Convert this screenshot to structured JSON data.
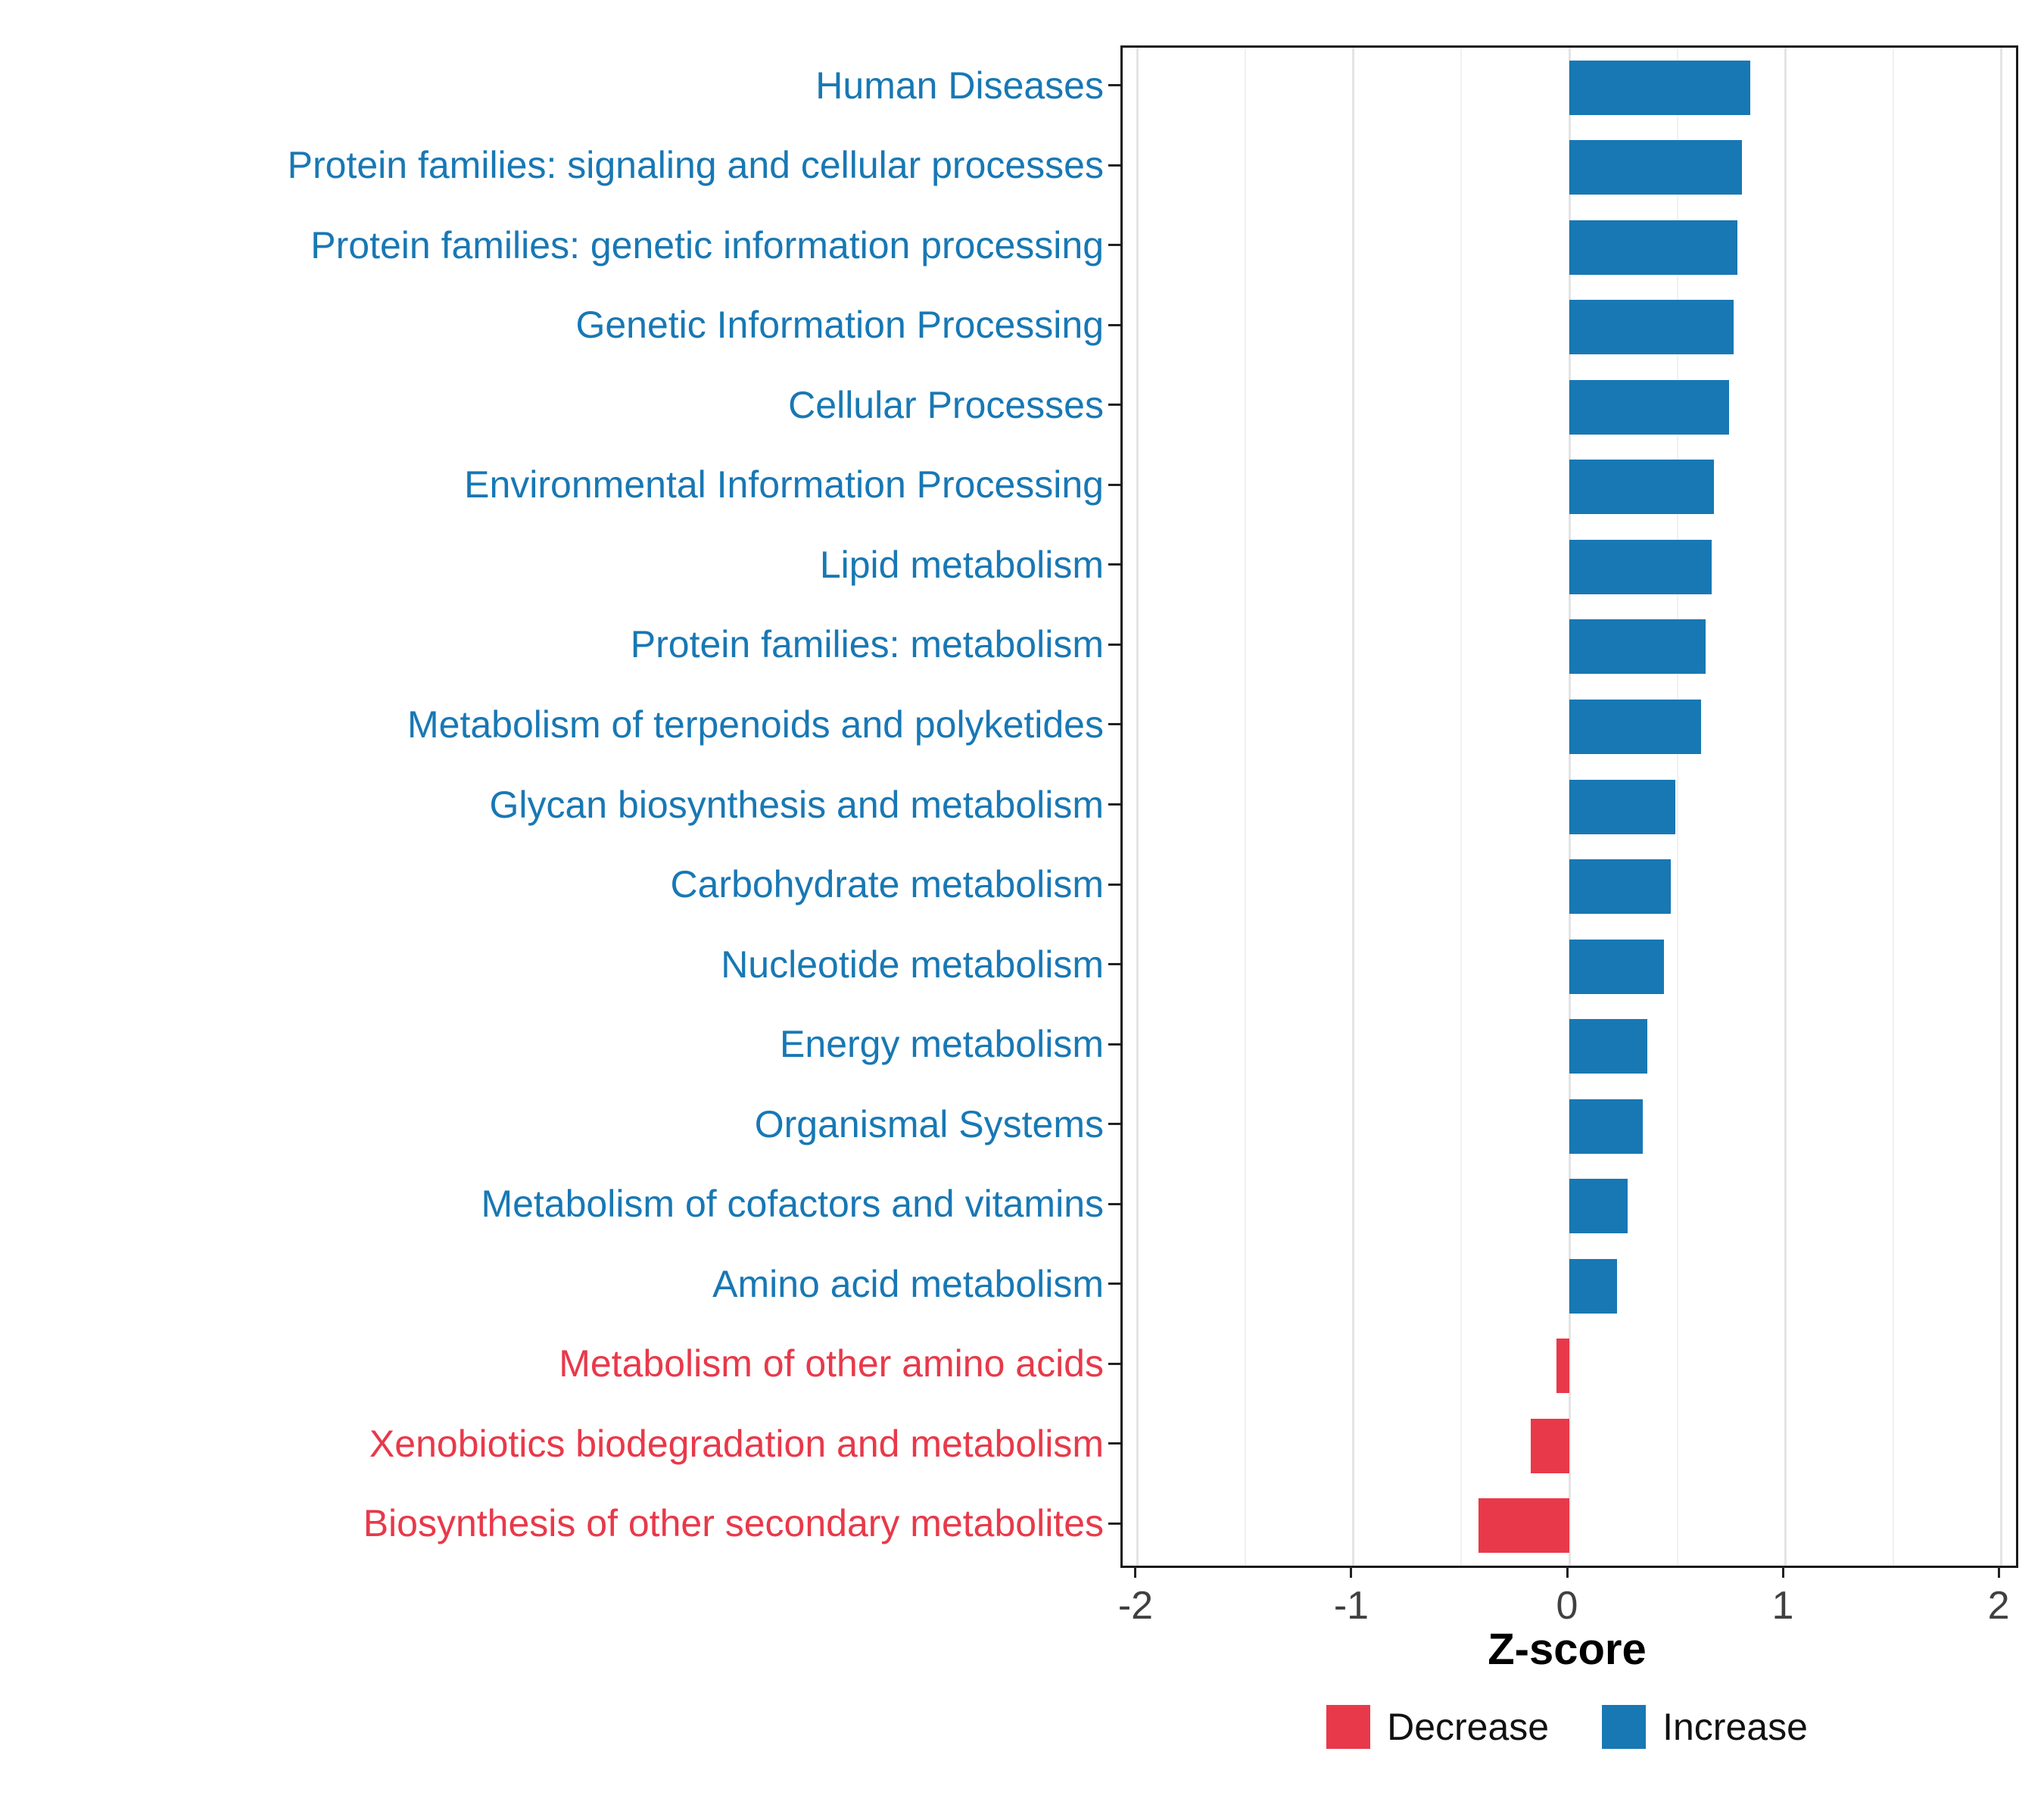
{
  "chart_data": {
    "type": "bar",
    "orientation": "horizontal",
    "title": "",
    "xlabel": "Z-score",
    "ylabel": "",
    "xlim": [
      -2,
      2
    ],
    "x_ticks": [
      -2,
      -1,
      0,
      1,
      2
    ],
    "grid": true,
    "legend_position": "bottom",
    "categories": [
      "Human Diseases",
      "Protein families: signaling and cellular processes",
      "Protein families: genetic information processing",
      "Genetic Information Processing",
      "Cellular Processes",
      "Environmental Information Processing",
      "Lipid metabolism",
      "Protein families: metabolism",
      "Metabolism of terpenoids and polyketides",
      "Glycan biosynthesis and metabolism",
      "Carbohydrate metabolism",
      "Nucleotide metabolism",
      "Energy metabolism",
      "Organismal Systems",
      "Metabolism of cofactors and vitamins",
      "Amino acid metabolism",
      "Metabolism of other amino acids",
      "Xenobiotics biodegradation and metabolism",
      "Biosynthesis of other secondary metabolites"
    ],
    "values": [
      0.84,
      0.8,
      0.78,
      0.76,
      0.74,
      0.67,
      0.66,
      0.63,
      0.61,
      0.49,
      0.47,
      0.44,
      0.36,
      0.34,
      0.27,
      0.22,
      -0.06,
      -0.18,
      -0.42
    ],
    "directions": [
      "increase",
      "increase",
      "increase",
      "increase",
      "increase",
      "increase",
      "increase",
      "increase",
      "increase",
      "increase",
      "increase",
      "increase",
      "increase",
      "increase",
      "increase",
      "increase",
      "decrease",
      "decrease",
      "decrease"
    ],
    "colors": {
      "increase": "#1878b4",
      "decrease": "#e8394a"
    },
    "legend": [
      {
        "label": "Decrease",
        "key": "decrease",
        "color": "#e8394a"
      },
      {
        "label": "Increase",
        "key": "increase",
        "color": "#1878b4"
      }
    ]
  }
}
